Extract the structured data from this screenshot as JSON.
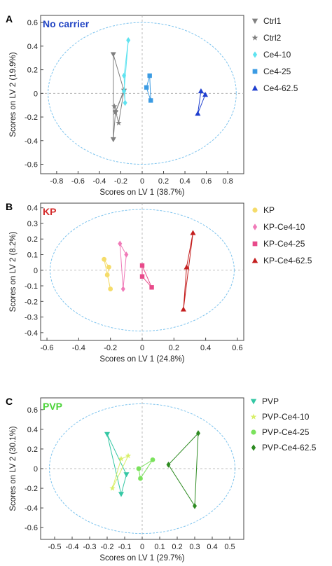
{
  "chart_data": [
    {
      "type": "scatter",
      "panel_letter": "A",
      "label": "No carrier",
      "label_color": "#2346c4",
      "xlabel": "Scores on LV 1 (38.7%)",
      "ylabel": "Scores on LV 2 (19.9%)",
      "xlim": [
        -0.95,
        0.95
      ],
      "ylim": [
        -0.68,
        0.66
      ],
      "xticks": [
        -0.8,
        -0.6,
        -0.4,
        -0.2,
        0,
        0.2,
        0.4,
        0.6,
        0.8
      ],
      "yticks": [
        -0.6,
        -0.4,
        -0.2,
        0,
        0.2,
        0.4,
        0.6
      ],
      "xtick_labels": [
        "-0.8",
        "-0.6",
        "-0.4",
        "-0.2",
        "0",
        "0.2",
        "0.4",
        "0.6",
        "0.8"
      ],
      "ytick_labels": [
        "-0.6",
        "-0.4",
        "-0.2",
        "0",
        "0.2",
        "0.4",
        "0.6"
      ],
      "ellipse": {
        "rx": 0.88,
        "ry": 0.6
      },
      "legend_position": "right",
      "grid": false,
      "series": [
        {
          "name": "Ctrl1",
          "color": "#808080",
          "marker": "triangle-down",
          "points": [
            [
              -0.27,
              0.33
            ],
            [
              -0.27,
              -0.39
            ],
            [
              -0.25,
              -0.16
            ],
            [
              -0.17,
              0.02
            ]
          ]
        },
        {
          "name": "Ctrl2",
          "color": "#808080",
          "marker": "star",
          "points": [
            [
              -0.26,
              -0.11
            ],
            [
              -0.22,
              -0.25
            ],
            [
              -0.17,
              0.03
            ],
            [
              -0.25,
              -0.16
            ]
          ]
        },
        {
          "name": "Ce4-10",
          "color": "#5fe3f0",
          "marker": "diamond",
          "points": [
            [
              -0.13,
              0.45
            ],
            [
              -0.17,
              0.15
            ],
            [
              -0.16,
              -0.08
            ],
            [
              -0.17,
              0.02
            ]
          ]
        },
        {
          "name": "Ce4-25",
          "color": "#3b9be3",
          "marker": "square",
          "points": [
            [
              0.07,
              0.15
            ],
            [
              0.04,
              0.05
            ],
            [
              0.08,
              -0.06
            ]
          ]
        },
        {
          "name": "Ce4-62.5",
          "color": "#1f3fcf",
          "marker": "triangle-up",
          "points": [
            [
              0.55,
              0.02
            ],
            [
              0.59,
              -0.01
            ],
            [
              0.52,
              -0.17
            ]
          ]
        }
      ]
    },
    {
      "type": "scatter",
      "panel_letter": "B",
      "label": "KP",
      "label_color": "#d42a2a",
      "xlabel": "Scores on LV 1 (24.8%)",
      "ylabel": "Scores on LV 2 (8.2%)",
      "xlim": [
        -0.64,
        0.64
      ],
      "ylim": [
        -0.45,
        0.43
      ],
      "xticks": [
        -0.6,
        -0.4,
        -0.2,
        0,
        0.2,
        0.4,
        0.6
      ],
      "yticks": [
        -0.4,
        -0.3,
        -0.2,
        -0.1,
        0,
        0.1,
        0.2,
        0.3,
        0.4
      ],
      "xtick_labels": [
        "-0.6",
        "-0.4",
        "-0.2",
        "0",
        "0.2",
        "0.4",
        "0.6"
      ],
      "ytick_labels": [
        "-0.4",
        "-0.3",
        "-0.2",
        "-0.1",
        "0",
        "0.1",
        "0.2",
        "0.3",
        "0.4"
      ],
      "ellipse": {
        "rx": 0.58,
        "ry": 0.39
      },
      "legend_position": "right",
      "grid": false,
      "series": [
        {
          "name": "KP",
          "color": "#f5dc6a",
          "marker": "circle",
          "points": [
            [
              -0.24,
              0.07
            ],
            [
              -0.21,
              0.02
            ],
            [
              -0.22,
              -0.03
            ],
            [
              -0.2,
              -0.12
            ]
          ]
        },
        {
          "name": "KP-Ce4-10",
          "color": "#f07ab8",
          "marker": "diamond",
          "points": [
            [
              -0.14,
              0.17
            ],
            [
              -0.1,
              0.1
            ],
            [
              -0.12,
              -0.12
            ]
          ]
        },
        {
          "name": "KP-Ce4-25",
          "color": "#e84a8a",
          "marker": "square",
          "points": [
            [
              0.0,
              0.03
            ],
            [
              0.0,
              -0.04
            ],
            [
              0.06,
              -0.11
            ]
          ]
        },
        {
          "name": "KP-Ce4-62.5",
          "color": "#c41e1e",
          "marker": "triangle-up",
          "points": [
            [
              0.32,
              0.24
            ],
            [
              0.28,
              0.02
            ],
            [
              0.26,
              -0.25
            ]
          ]
        }
      ]
    },
    {
      "type": "scatter",
      "panel_letter": "C",
      "label": "PVP",
      "label_color": "#4cd33a",
      "xlabel": "Scores on LV 1 (29.7%)",
      "ylabel": "Scores on LV 2 (30.1%)",
      "xlim": [
        -0.58,
        0.58
      ],
      "ylim": [
        -0.72,
        0.72
      ],
      "xticks": [
        -0.5,
        -0.4,
        -0.3,
        -0.2,
        -0.1,
        0,
        0.1,
        0.2,
        0.3,
        0.4,
        0.5
      ],
      "yticks": [
        -0.6,
        -0.4,
        -0.2,
        0,
        0.2,
        0.4,
        0.6
      ],
      "xtick_labels": [
        "-0.5",
        "-0.4",
        "-0.3",
        "-0.2",
        "-0.1",
        "0",
        "0.1",
        "0.2",
        "0.3",
        "0.4",
        "0.5"
      ],
      "ytick_labels": [
        "-0.6",
        "-0.4",
        "-0.2",
        "0",
        "0.2",
        "0.4",
        "0.6"
      ],
      "ellipse": {
        "rx": 0.53,
        "ry": 0.66
      },
      "legend_position": "right",
      "grid": false,
      "series": [
        {
          "name": "PVP",
          "color": "#34c7a4",
          "marker": "triangle-down",
          "points": [
            [
              -0.2,
              0.35
            ],
            [
              -0.12,
              -0.26
            ],
            [
              -0.09,
              -0.06
            ]
          ]
        },
        {
          "name": "PVP-Ce4-10",
          "color": "#d9f06a",
          "marker": "star",
          "points": [
            [
              -0.17,
              -0.2
            ],
            [
              -0.08,
              0.13
            ],
            [
              -0.12,
              0.1
            ]
          ]
        },
        {
          "name": "PVP-Ce4-25",
          "color": "#7be25c",
          "marker": "circle",
          "points": [
            [
              -0.02,
              0.0
            ],
            [
              0.06,
              0.09
            ],
            [
              -0.01,
              -0.1
            ]
          ]
        },
        {
          "name": "PVP-Ce4-62.5",
          "color": "#2e8b22",
          "marker": "diamond",
          "points": [
            [
              0.15,
              0.04
            ],
            [
              0.32,
              0.36
            ],
            [
              0.3,
              -0.38
            ]
          ]
        }
      ]
    }
  ]
}
